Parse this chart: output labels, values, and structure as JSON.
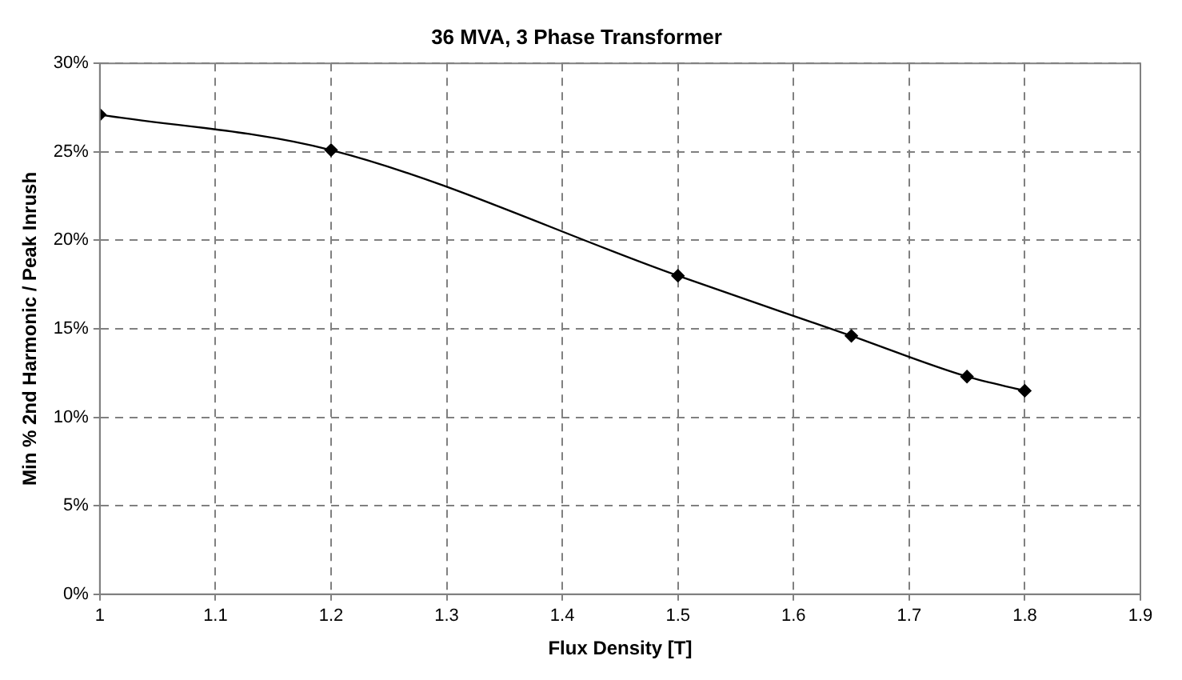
{
  "chart_data": {
    "type": "line",
    "title": "36 MVA, 3 Phase Transformer",
    "xlabel": "Flux Density [T]",
    "ylabel": "Min % 2nd Harmonic / Peak Inrush",
    "series": [
      {
        "color": "#000000",
        "x": [
          1,
          1.2,
          1.5,
          1.65,
          1.75,
          1.8
        ],
        "values": [
          27.1,
          25.1,
          18.0,
          14.6,
          12.3,
          11.5
        ]
      }
    ],
    "xlim": [
      1,
      1.9
    ],
    "xticks": [
      1,
      1.1,
      1.2,
      1.3,
      1.4,
      1.5,
      1.6,
      1.7,
      1.8,
      1.9
    ],
    "ylim": [
      0,
      30
    ],
    "yticks": [
      {
        "value": 0,
        "label": "0%"
      },
      {
        "value": 5,
        "label": "5%"
      },
      {
        "value": 10,
        "label": "10%"
      },
      {
        "value": 15,
        "label": "15%"
      },
      {
        "value": 20,
        "label": "20%"
      },
      {
        "value": 25,
        "label": "25%"
      },
      {
        "value": 30,
        "label": "30%"
      }
    ],
    "grid": true,
    "legend": false,
    "marker": "diamond",
    "line_style": "solid"
  }
}
